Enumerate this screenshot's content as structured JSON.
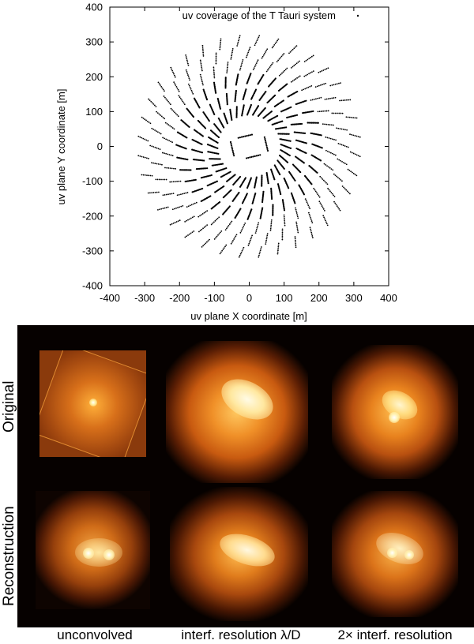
{
  "chart_data": {
    "type": "scatter",
    "title": "uv coverage of the T Tauri system",
    "legend": {
      "label": "uv coverage of the T Tauri system",
      "placement": "top-right"
    },
    "xlabel": "uv plane X coordinate [m]",
    "ylabel": "uv plane Y coordinate [m]",
    "xlim": [
      -400,
      400
    ],
    "ylim": [
      -400,
      400
    ],
    "xticks": [
      -400,
      -300,
      -200,
      -100,
      0,
      100,
      200,
      300,
      400
    ],
    "yticks": [
      -400,
      -300,
      -200,
      -100,
      0,
      100,
      200,
      300,
      400
    ],
    "grid": false,
    "structure": {
      "inner_ring_radius_m": 50,
      "inner_ring_tracks": 4,
      "ring_radii_m": [
        105,
        150,
        195,
        235,
        270,
        305
      ],
      "tracks_per_ring": 36,
      "track_length_m": 30
    }
  },
  "figure": {
    "row_labels": [
      "Original",
      "Reconstruction"
    ],
    "column_labels": [
      "unconvolved",
      "interf. resolution λ/D",
      "2× interf. resolution"
    ]
  },
  "colors": {
    "background": "#060100",
    "hot_core": "#fff8d8",
    "bright": "#ffb23a",
    "mid": "#d86a10",
    "dim": "#5a2006"
  }
}
